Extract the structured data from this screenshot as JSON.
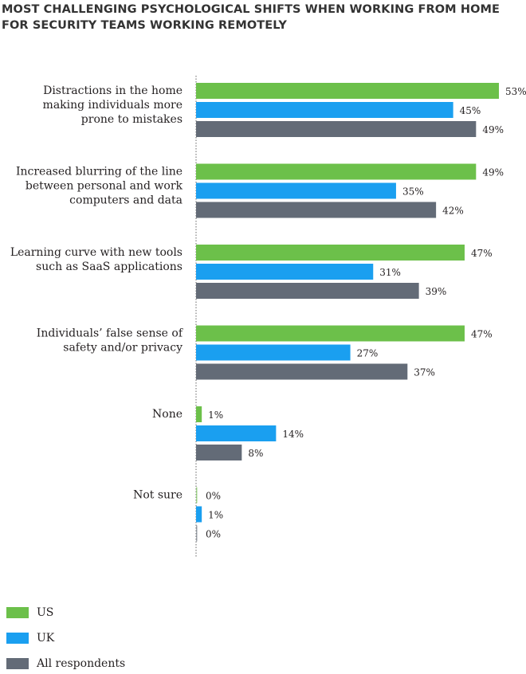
{
  "chart_data": {
    "type": "bar",
    "orientation": "horizontal",
    "title": "MOST CHALLENGING PSYCHOLOGICAL SHIFTS WHEN WORKING FROM HOME FOR SECURITY TEAMS WORKING REMOTELY",
    "categories": [
      [
        "Distractions in the home",
        "making individuals more",
        "prone to mistakes"
      ],
      [
        "Increased blurring of the line",
        "between personal and work",
        "computers and data"
      ],
      [
        "Learning curve with new tools",
        "such as SaaS applications"
      ],
      [
        "Individuals’ false sense of",
        "safety and/or privacy"
      ],
      [
        "None"
      ],
      [
        "Not sure"
      ]
    ],
    "series": [
      {
        "name": "US",
        "color": "#6cc04a",
        "values": [
          53,
          49,
          47,
          47,
          1,
          0
        ]
      },
      {
        "name": "UK",
        "color": "#1a9ff0",
        "values": [
          45,
          35,
          31,
          27,
          14,
          1
        ]
      },
      {
        "name": "All respondents",
        "color": "#636b77",
        "values": [
          49,
          42,
          39,
          37,
          8,
          0
        ]
      }
    ],
    "value_suffix": "%",
    "xlim": [
      0,
      53
    ],
    "grid": false,
    "legend": "bottom-left"
  }
}
